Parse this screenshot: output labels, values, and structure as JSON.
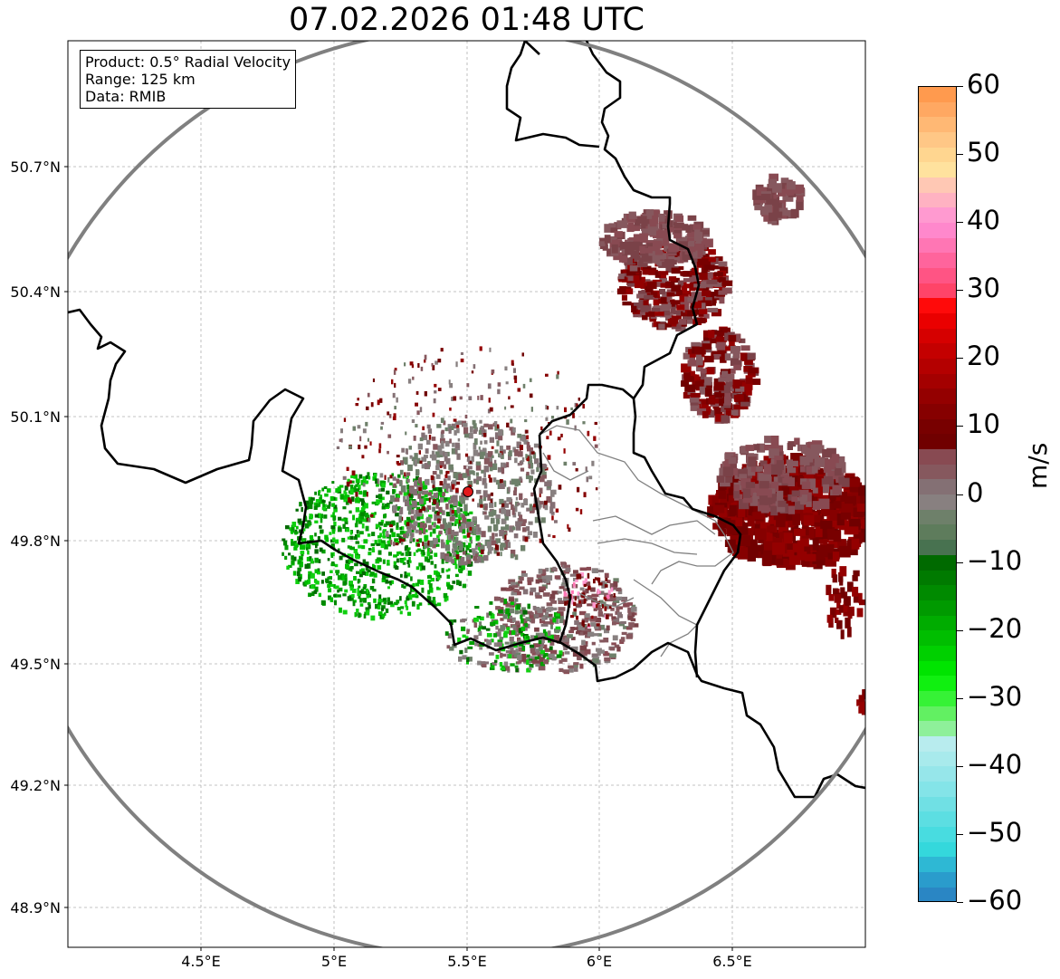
{
  "title": "07.02.2026 01:48 UTC",
  "info": {
    "product": "Product: 0.5° Radial Velocity",
    "range": "Range: 125 km",
    "data_source": "Data: RMIB"
  },
  "axes": {
    "lon_ticks": [
      "4.5°E",
      "5°E",
      "5.5°E",
      "6°E",
      "6.5°E"
    ],
    "lat_ticks": [
      "50.7°N",
      "50.4°N",
      "50.1°N",
      "49.8°N",
      "49.5°N",
      "49.2°N",
      "48.9°N"
    ]
  },
  "colorbar": {
    "label": "m/s",
    "ticks": [
      "60",
      "50",
      "40",
      "30",
      "20",
      "10",
      "0",
      "−10",
      "−20",
      "−30",
      "−40",
      "−50",
      "−60"
    ],
    "colors_top_to_bottom": [
      "#ff9a4e",
      "#ffa862",
      "#ffb874",
      "#ffc786",
      "#ffd690",
      "#ffe29e",
      "#ffc8b4",
      "#ffb2c2",
      "#ff9ad0",
      "#ff88cc",
      "#ff76b4",
      "#ff649c",
      "#ff5484",
      "#ff4468",
      "#ff0a0a",
      "#ea0000",
      "#d60000",
      "#c40000",
      "#b40000",
      "#a40000",
      "#940000",
      "#860000",
      "#780000",
      "#700000",
      "#884a52",
      "#86585e",
      "#847074",
      "#888080",
      "#6e806a",
      "#5e7c5c",
      "#487250",
      "#006a00",
      "#007a00",
      "#008a00",
      "#009a00",
      "#00ac00",
      "#00be00",
      "#00d000",
      "#00e400",
      "#10f010",
      "#36f236",
      "#62f062",
      "#8ef09a",
      "#b8ecee",
      "#a8eaec",
      "#96e6ea",
      "#84e4e8",
      "#70e0e4",
      "#5cdee2",
      "#48dce0",
      "#34d8dc",
      "#2eb8d4",
      "#2a9ccc",
      "#2a86c4"
    ]
  },
  "radar_site": {
    "lon": 5.5,
    "lat": 49.915,
    "color": "#e41a1c"
  },
  "colors": {
    "ring": "#808080",
    "border": "#000000",
    "grid": "#b0b0b0"
  }
}
